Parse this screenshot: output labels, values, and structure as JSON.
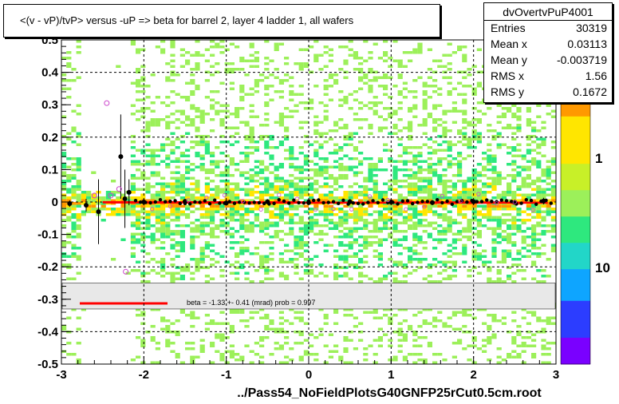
{
  "chart_data": {
    "type": "heatmap",
    "title": "<(v - vP)/tvP> versus  -uP => beta for barrel 2, layer 4 ladder 1, all wafers",
    "xlim": [
      -3,
      3
    ],
    "ylim": [
      -0.5,
      0.5
    ],
    "x_ticks": [
      "-3",
      "-2",
      "-1",
      "0",
      "1",
      "2",
      "3"
    ],
    "y_ticks": [
      "-0.5",
      "-0.4",
      "-0.3",
      "-0.2",
      "-0.1",
      "0",
      "0.1",
      "0.2",
      "0.3",
      "0.4",
      "0.5"
    ],
    "x_major_grid": [
      -2,
      -1,
      0,
      1,
      2
    ],
    "y_major_grid": [
      -0.4,
      -0.2,
      0,
      0.2,
      0.4
    ],
    "grid": true,
    "colorbar": {
      "ticks": [
        "1",
        "10"
      ],
      "scale": "log",
      "colors": [
        "#7a00ff",
        "#2c3dff",
        "#0ea5ff",
        "#22d6c8",
        "#2ee87e",
        "#9cf05a",
        "#ffe600",
        "#ff9900"
      ]
    },
    "profile_points": [
      {
        "x": -2.9,
        "y": -0.005,
        "err": 0.01
      },
      {
        "x": -2.7,
        "y": -0.01,
        "err": 0.02
      },
      {
        "x": -2.55,
        "y": -0.03,
        "err": 0.1
      },
      {
        "x": -2.28,
        "y": 0.14,
        "err": 0.13
      },
      {
        "x": -2.23,
        "y": 0.01,
        "err": 0.09
      },
      {
        "x": -2.18,
        "y": 0.03,
        "err": 0.04
      },
      {
        "x": -2.0,
        "y": 0.0,
        "err": 0.01
      },
      {
        "x": -1.5,
        "y": 0.002,
        "err": 0.008
      },
      {
        "x": -1.0,
        "y": -0.003,
        "err": 0.008
      },
      {
        "x": -0.5,
        "y": 0.001,
        "err": 0.008
      },
      {
        "x": 0.0,
        "y": -0.002,
        "err": 0.008
      },
      {
        "x": 0.5,
        "y": 0.001,
        "err": 0.008
      },
      {
        "x": 1.0,
        "y": 0.0,
        "err": 0.008
      },
      {
        "x": 1.5,
        "y": -0.002,
        "err": 0.008
      },
      {
        "x": 2.0,
        "y": 0.001,
        "err": 0.008
      },
      {
        "x": 2.5,
        "y": -0.001,
        "err": 0.008
      },
      {
        "x": 2.85,
        "y": 0.003,
        "err": 0.01
      }
    ],
    "open_markers": [
      {
        "x": -2.45,
        "y": 0.305
      },
      {
        "x": -2.22,
        "y": -0.215
      },
      {
        "x": -2.6,
        "y": 0.02
      },
      {
        "x": -2.4,
        "y": 0.02
      },
      {
        "x": -2.3,
        "y": 0.04
      }
    ],
    "fit": {
      "type": "line",
      "x": [
        -2.5,
        2.9
      ],
      "y": [
        -0.001,
        -0.002
      ],
      "color": "#ff0000"
    },
    "legend": {
      "text": "beta =   -1.33 +-  0.41 (mrad) prob = 0.997"
    }
  },
  "stats": {
    "name": "dvOvertvPuP4001",
    "rows": [
      {
        "k": "Entries",
        "v": "30319"
      },
      {
        "k": "Mean x",
        "v": "0.03113"
      },
      {
        "k": "Mean y",
        "v": "-0.003719"
      },
      {
        "k": "RMS x",
        "v": "1.56"
      },
      {
        "k": "RMS y",
        "v": "0.1672"
      }
    ],
    "palette_axis_partial": "0"
  },
  "footer": "../Pass54_NoFieldPlotsG40GNFP25rCut0.5cm.root"
}
